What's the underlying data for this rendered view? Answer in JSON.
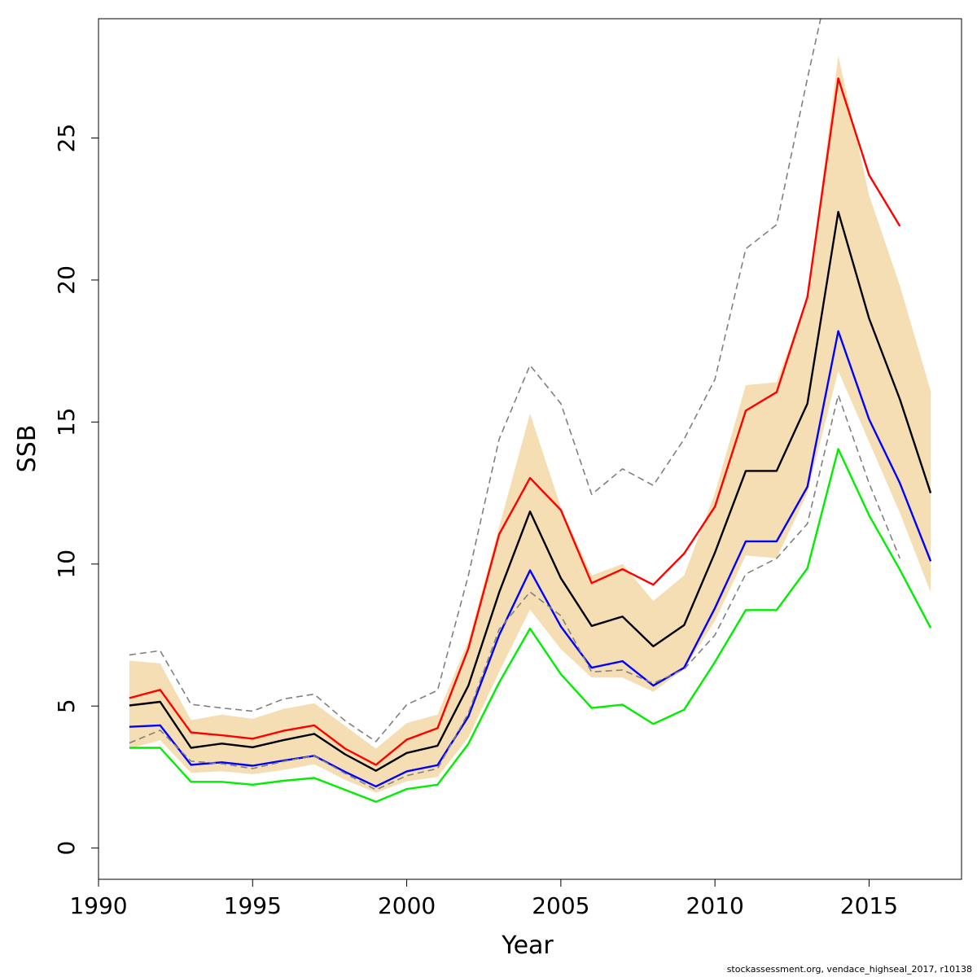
{
  "chart_data": {
    "type": "line",
    "xlabel": "Year",
    "ylabel": "SSB",
    "xlim": [
      1990,
      2018
    ],
    "ylim": [
      -1.1,
      29.2
    ],
    "xticks": [
      1990,
      1995,
      2000,
      2005,
      2010,
      2015
    ],
    "yticks": [
      0,
      5,
      10,
      15,
      20,
      25
    ],
    "grid": false,
    "legend": "none",
    "x": [
      1991,
      1992,
      1993,
      1994,
      1995,
      1996,
      1997,
      1998,
      1999,
      2000,
      2001,
      2002,
      2003,
      2004,
      2005,
      2006,
      2007,
      2008,
      2009,
      2010,
      2011,
      2012,
      2013,
      2014,
      2015,
      2016,
      2017
    ],
    "band": {
      "color": "#f5deb3",
      "upper": [
        6.6,
        6.5,
        4.5,
        4.7,
        4.55,
        4.9,
        5.1,
        4.3,
        3.5,
        4.4,
        4.7,
        7.3,
        11.3,
        15.3,
        12.0,
        9.6,
        10.0,
        8.7,
        9.6,
        12.5,
        16.3,
        16.4,
        19.4,
        27.9,
        23.0,
        19.8,
        16.1
      ],
      "lower": [
        3.5,
        3.8,
        2.65,
        2.7,
        2.6,
        2.75,
        2.95,
        2.4,
        1.95,
        2.35,
        2.5,
        3.9,
        6.2,
        8.4,
        7.0,
        6.0,
        6.0,
        5.5,
        6.3,
        8.0,
        10.3,
        10.2,
        12.5,
        16.8,
        14.3,
        11.8,
        9.0
      ]
    },
    "series": [
      {
        "color": "#ff0000",
        "style": "solid",
        "values": [
          5.28,
          5.57,
          4.07,
          3.97,
          3.85,
          4.13,
          4.32,
          3.5,
          2.93,
          3.82,
          4.22,
          7.03,
          11.05,
          13.03,
          11.9,
          9.33,
          9.82,
          9.27,
          10.37,
          12.02,
          15.4,
          16.05,
          19.4,
          27.1,
          23.7,
          21.9,
          null
        ]
      },
      {
        "color": "#000000",
        "style": "solid",
        "values": [
          5.02,
          5.15,
          3.53,
          3.68,
          3.55,
          3.8,
          4.02,
          3.3,
          2.72,
          3.35,
          3.6,
          5.72,
          9.0,
          11.85,
          9.5,
          7.82,
          8.15,
          7.1,
          7.85,
          10.4,
          13.28,
          13.28,
          15.65,
          22.4,
          18.65,
          15.8,
          12.5
        ]
      },
      {
        "color": "#0000ff",
        "style": "solid",
        "values": [
          4.27,
          4.32,
          2.93,
          3.02,
          2.9,
          3.08,
          3.25,
          2.68,
          2.17,
          2.7,
          2.92,
          4.63,
          7.5,
          9.78,
          7.8,
          6.35,
          6.58,
          5.72,
          6.35,
          8.45,
          10.8,
          10.8,
          12.72,
          18.2,
          15.1,
          12.85,
          10.1
        ]
      },
      {
        "color": "#00ee00",
        "style": "solid",
        "values": [
          3.53,
          3.53,
          2.33,
          2.33,
          2.23,
          2.37,
          2.47,
          2.05,
          1.63,
          2.08,
          2.23,
          3.67,
          5.83,
          7.73,
          6.12,
          4.93,
          5.05,
          4.37,
          4.87,
          6.55,
          8.38,
          8.38,
          9.85,
          14.05,
          11.72,
          9.8,
          7.75
        ]
      },
      {
        "color": "#808080",
        "style": "dashed",
        "values": [
          6.8,
          6.95,
          5.06,
          4.93,
          4.82,
          5.25,
          5.42,
          4.48,
          3.75,
          5.05,
          5.55,
          9.6,
          14.4,
          17.0,
          15.65,
          12.45,
          13.35,
          12.77,
          14.4,
          16.5,
          21.1,
          21.95,
          27.1,
          32.0,
          null,
          null,
          null
        ]
      },
      {
        "color": "#808080",
        "style": "dashed",
        "values": [
          3.7,
          4.15,
          3.06,
          2.97,
          2.8,
          3.05,
          3.25,
          2.63,
          2.05,
          2.55,
          2.8,
          4.75,
          7.7,
          9.02,
          8.18,
          6.2,
          6.27,
          5.8,
          6.3,
          7.5,
          9.65,
          10.2,
          11.42,
          15.95,
          12.85,
          10.2,
          null
        ]
      }
    ]
  },
  "footer": "stockassessment.org, vendace_highseal_2017, r10138"
}
